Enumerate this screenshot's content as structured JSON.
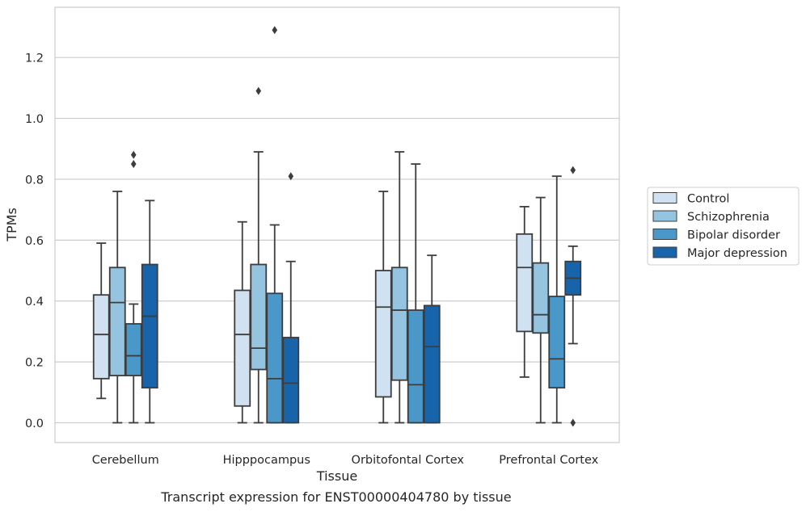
{
  "caption": "Transcript expression for ENST00000404780 by tissue",
  "chart_data": {
    "type": "box",
    "title": "",
    "xlabel": "Tissue",
    "ylabel": "TPMs",
    "ylim": [
      -0.065,
      1.365
    ],
    "yticks": [
      0.0,
      0.2,
      0.4,
      0.6,
      0.8,
      1.0,
      1.2
    ],
    "ytick_labels": [
      "0.0",
      "0.2",
      "0.4",
      "0.6",
      "0.8",
      "1.0",
      "1.2"
    ],
    "categories": [
      "Cerebellum",
      "Hipppocampus",
      "Orbitofontal Cortex",
      "Prefrontal Cortex"
    ],
    "grid": "horizontal",
    "legend_position": "right",
    "series": [
      {
        "name": "Control",
        "color": "#d0e1f2",
        "boxes": [
          {
            "whisker_low": 0.08,
            "q1": 0.145,
            "median": 0.29,
            "q3": 0.42,
            "whisker_high": 0.59,
            "outliers": []
          },
          {
            "whisker_low": 0.0,
            "q1": 0.055,
            "median": 0.29,
            "q3": 0.435,
            "whisker_high": 0.66,
            "outliers": []
          },
          {
            "whisker_low": 0.0,
            "q1": 0.085,
            "median": 0.38,
            "q3": 0.5,
            "whisker_high": 0.76,
            "outliers": []
          },
          {
            "whisker_low": 0.15,
            "q1": 0.3,
            "median": 0.51,
            "q3": 0.62,
            "whisker_high": 0.71,
            "outliers": []
          }
        ]
      },
      {
        "name": "Schizophrenia",
        "color": "#94c4df",
        "boxes": [
          {
            "whisker_low": 0.0,
            "q1": 0.155,
            "median": 0.395,
            "q3": 0.51,
            "whisker_high": 0.76,
            "outliers": []
          },
          {
            "whisker_low": 0.0,
            "q1": 0.175,
            "median": 0.245,
            "q3": 0.52,
            "whisker_high": 0.89,
            "outliers": [
              1.09
            ]
          },
          {
            "whisker_low": 0.0,
            "q1": 0.14,
            "median": 0.37,
            "q3": 0.51,
            "whisker_high": 0.89,
            "outliers": []
          },
          {
            "whisker_low": 0.0,
            "q1": 0.295,
            "median": 0.355,
            "q3": 0.525,
            "whisker_high": 0.74,
            "outliers": []
          }
        ]
      },
      {
        "name": "Bipolar disorder",
        "color": "#4a98c9",
        "boxes": [
          {
            "whisker_low": 0.0,
            "q1": 0.155,
            "median": 0.22,
            "q3": 0.325,
            "whisker_high": 0.39,
            "outliers": [
              0.85,
              0.88
            ]
          },
          {
            "whisker_low": 0.0,
            "q1": 0.0,
            "median": 0.145,
            "q3": 0.425,
            "whisker_high": 0.65,
            "outliers": [
              1.29
            ]
          },
          {
            "whisker_low": 0.0,
            "q1": 0.0,
            "median": 0.125,
            "q3": 0.37,
            "whisker_high": 0.85,
            "outliers": []
          },
          {
            "whisker_low": 0.0,
            "q1": 0.115,
            "median": 0.21,
            "q3": 0.415,
            "whisker_high": 0.81,
            "outliers": []
          }
        ]
      },
      {
        "name": "Major depression",
        "color": "#1764ab",
        "boxes": [
          {
            "whisker_low": 0.0,
            "q1": 0.115,
            "median": 0.35,
            "q3": 0.52,
            "whisker_high": 0.73,
            "outliers": []
          },
          {
            "whisker_low": 0.0,
            "q1": 0.0,
            "median": 0.13,
            "q3": 0.28,
            "whisker_high": 0.53,
            "outliers": [
              0.81
            ]
          },
          {
            "whisker_low": 0.0,
            "q1": 0.0,
            "median": 0.25,
            "q3": 0.385,
            "whisker_high": 0.55,
            "outliers": []
          },
          {
            "whisker_low": 0.26,
            "q1": 0.42,
            "median": 0.475,
            "q3": 0.53,
            "whisker_high": 0.58,
            "outliers": [
              0.0,
              0.83
            ]
          }
        ]
      }
    ]
  }
}
